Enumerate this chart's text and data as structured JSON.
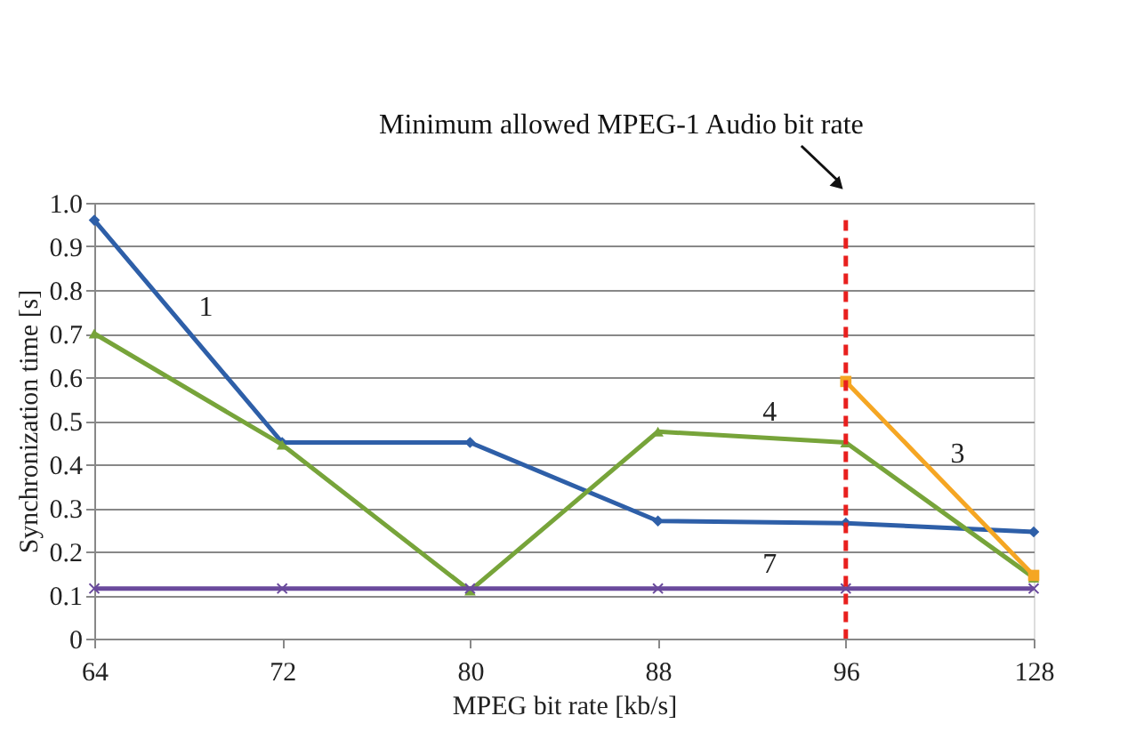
{
  "chart_data": {
    "type": "line",
    "xlabel": "MPEG bit rate [kb/s]",
    "ylabel": "Synchronization time [s]",
    "categories": [
      "64",
      "72",
      "80",
      "88",
      "96",
      "128"
    ],
    "series": [
      {
        "name": "1",
        "color": "#2e5fa8",
        "marker": "diamond",
        "values": [
          0.96,
          0.45,
          0.45,
          0.27,
          0.265,
          0.245
        ]
      },
      {
        "name": "4",
        "color": "#77a43a",
        "marker": "triangle",
        "values": [
          0.7,
          0.445,
          0.11,
          0.475,
          0.45,
          0.14
        ]
      },
      {
        "name": "3",
        "color": "#f5a623",
        "marker": "square",
        "values": [
          null,
          null,
          null,
          null,
          0.59,
          0.145
        ]
      },
      {
        "name": "7",
        "color": "#6a4a9c",
        "marker": "cross",
        "values": [
          0.115,
          0.115,
          0.115,
          0.115,
          0.115,
          0.115
        ]
      }
    ],
    "ylim": [
      0,
      1
    ],
    "yticks": [
      0,
      0.1,
      0.2,
      0.3,
      0.4,
      0.5,
      0.6,
      0.7,
      0.8,
      0.9,
      {
        "value": 1,
        "label": "1.0"
      }
    ],
    "ref_lines": [
      {
        "axis": "x",
        "value": "96",
        "label": "Minimum allowed MPEG-1 Audio bit rate",
        "color": "#e8201e",
        "line_style": "dashed"
      }
    ],
    "grid": "y"
  }
}
